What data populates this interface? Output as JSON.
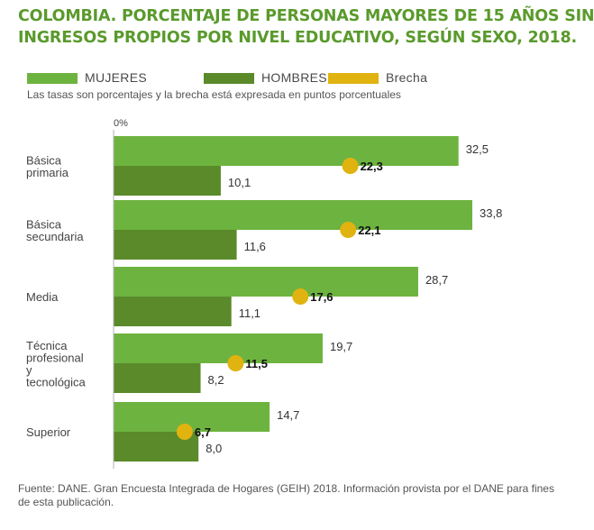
{
  "title_lines": [
    "COLOMBIA. PORCENTAJE DE PERSONAS MAYORES DE 15 AÑOS SIN",
    "INGRESOS PROPIOS POR NIVEL EDUCATIVO, SEGÚN SEXO, 2018."
  ],
  "legend": [
    {
      "label": "MUJERES",
      "color": "#6db33f"
    },
    {
      "label": "HOMBRES",
      "color": "#5a8a2a"
    },
    {
      "label": "Brecha",
      "color": "#e0b310"
    }
  ],
  "subtitle": "Las tasas son porcentajes y la brecha está expresada en puntos porcentuales",
  "source": "Fuente: DANE. Gran Encuesta Integrada de Hogares (GEIH) 2018. Información provista por el DANE para fines de esta publicación.",
  "chart_data": {
    "type": "bar",
    "orientation": "horizontal",
    "axis_label": "0%",
    "categories": [
      [
        "Básica",
        "primaria"
      ],
      [
        "Básica",
        "secundaria"
      ],
      [
        "Media"
      ],
      [
        "Técnica",
        "profesional",
        "y",
        "tecnológica"
      ],
      [
        "Superior"
      ]
    ],
    "series": [
      {
        "name": "MUJERES",
        "values": [
          "32,5",
          "33,8",
          "28,7",
          "19,7",
          "14,7"
        ],
        "color": "#6db33f"
      },
      {
        "name": "HOMBRES",
        "values": [
          "10,1",
          "11,6",
          "11,1",
          "8,2",
          "8,0"
        ],
        "color": "#5a8a2a"
      },
      {
        "name": "Brecha",
        "values": [
          "22,3",
          "22,1",
          "17,6",
          "11,5",
          "6,7"
        ],
        "color": "#e0b310"
      }
    ],
    "xlim": [
      0,
      35
    ]
  }
}
